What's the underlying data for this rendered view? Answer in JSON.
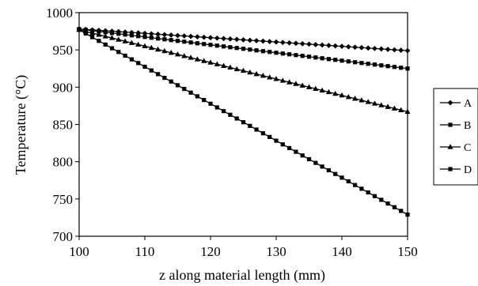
{
  "chart_data": {
    "type": "line",
    "xlabel": "z along material length (mm)",
    "ylabel": "Temperature (°C)",
    "xlim": [
      100,
      150
    ],
    "ylim": [
      700,
      1000
    ],
    "x_ticks": [
      "100",
      "110",
      "120",
      "130",
      "140",
      "150"
    ],
    "y_ticks": [
      "700",
      "750",
      "800",
      "850",
      "900",
      "950",
      "1000"
    ],
    "grid": false,
    "legend_position": "right",
    "series": [
      {
        "name": "A",
        "marker": "diamond",
        "start": [
          100,
          978
        ],
        "end": [
          150,
          949
        ]
      },
      {
        "name": "B",
        "marker": "square",
        "start": [
          100,
          978
        ],
        "end": [
          150,
          925
        ]
      },
      {
        "name": "C",
        "marker": "triangle",
        "start": [
          100,
          977
        ],
        "end": [
          150,
          867
        ]
      },
      {
        "name": "D",
        "marker": "square",
        "start": [
          100,
          977
        ],
        "end": [
          150,
          729
        ]
      }
    ],
    "color": "#000000"
  }
}
